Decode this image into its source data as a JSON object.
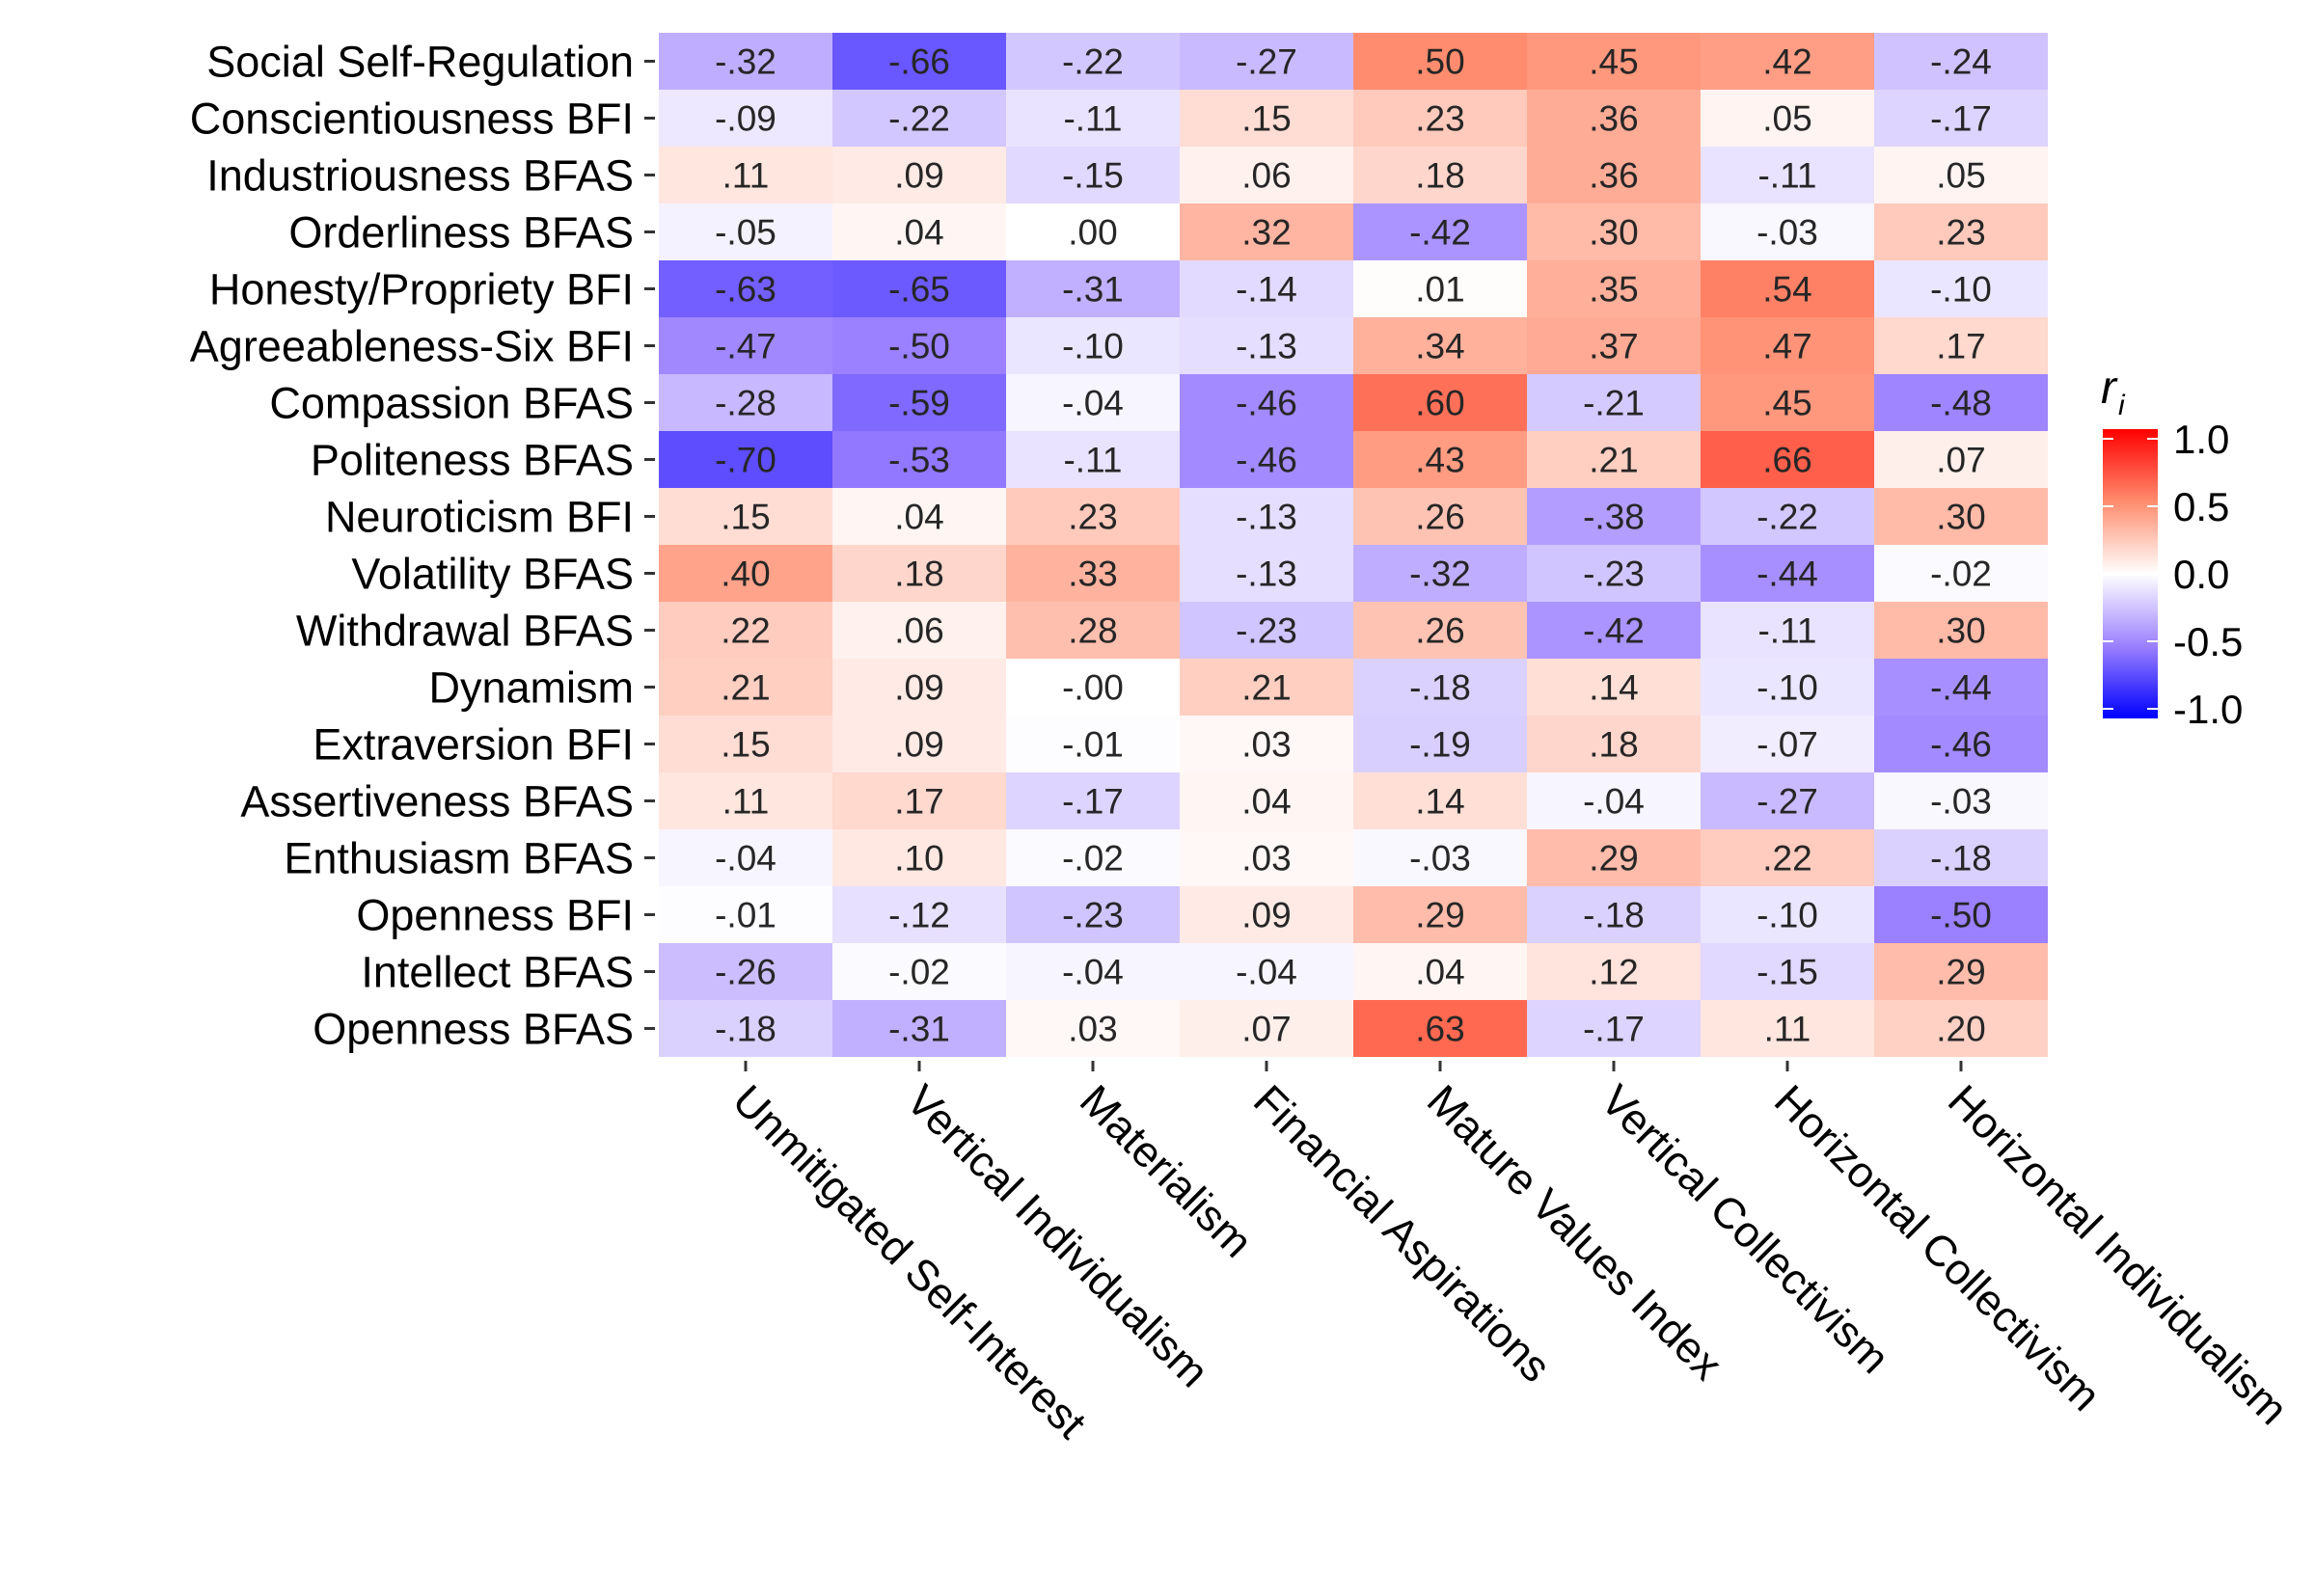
{
  "chart_data": {
    "type": "heatmap",
    "rows": [
      "Social Self-Regulation",
      "Conscientiousness BFI",
      "Industriousness BFAS",
      "Orderliness BFAS",
      "Honesty/Propriety BFI",
      "Agreeableness-Six BFI",
      "Compassion BFAS",
      "Politeness BFAS",
      "Neuroticism BFI",
      "Volatility BFAS",
      "Withdrawal BFAS",
      "Dynamism",
      "Extraversion BFI",
      "Assertiveness BFAS",
      "Enthusiasm BFAS",
      "Openness BFI",
      "Intellect BFAS",
      "Openness BFAS"
    ],
    "columns": [
      "Unmitigated Self-Interest",
      "Vertical Individualism",
      "Materialism",
      "Financial Aspirations",
      "Mature Values Index",
      "Vertical Collectivism",
      "Horizontal Collectivism",
      "Horizontal Individualism"
    ],
    "labels": [
      [
        "-.32",
        "-.66",
        "-.22",
        "-.27",
        ".50",
        ".45",
        ".42",
        "-.24"
      ],
      [
        "-.09",
        "-.22",
        "-.11",
        ".15",
        ".23",
        ".36",
        ".05",
        "-.17"
      ],
      [
        ".11",
        ".09",
        "-.15",
        ".06",
        ".18",
        ".36",
        "-.11",
        ".05"
      ],
      [
        "-.05",
        ".04",
        ".00",
        ".32",
        "-.42",
        ".30",
        "-.03",
        ".23"
      ],
      [
        "-.63",
        "-.65",
        "-.31",
        "-.14",
        ".01",
        ".35",
        ".54",
        "-.10"
      ],
      [
        "-.47",
        "-.50",
        "-.10",
        "-.13",
        ".34",
        ".37",
        ".47",
        ".17"
      ],
      [
        "-.28",
        "-.59",
        "-.04",
        "-.46",
        ".60",
        "-.21",
        ".45",
        "-.48"
      ],
      [
        "-.70",
        "-.53",
        "-.11",
        "-.46",
        ".43",
        ".21",
        ".66",
        ".07"
      ],
      [
        ".15",
        ".04",
        ".23",
        "-.13",
        ".26",
        "-.38",
        "-.22",
        ".30"
      ],
      [
        ".40",
        ".18",
        ".33",
        "-.13",
        "-.32",
        "-.23",
        "-.44",
        "-.02"
      ],
      [
        ".22",
        ".06",
        ".28",
        "-.23",
        ".26",
        "-.42",
        "-.11",
        ".30"
      ],
      [
        ".21",
        ".09",
        "-.00",
        ".21",
        "-.18",
        ".14",
        "-.10",
        "-.44"
      ],
      [
        ".15",
        ".09",
        "-.01",
        ".03",
        "-.19",
        ".18",
        "-.07",
        "-.46"
      ],
      [
        ".11",
        ".17",
        "-.17",
        ".04",
        ".14",
        "-.04",
        "-.27",
        "-.03"
      ],
      [
        "-.04",
        ".10",
        "-.02",
        ".03",
        "-.03",
        ".29",
        ".22",
        "-.18"
      ],
      [
        "-.01",
        "-.12",
        "-.23",
        ".09",
        ".29",
        "-.18",
        "-.10",
        "-.50"
      ],
      [
        "-.26",
        "-.02",
        "-.04",
        "-.04",
        ".04",
        ".12",
        "-.15",
        ".29"
      ],
      [
        "-.18",
        "-.31",
        ".03",
        ".07",
        ".63",
        "-.17",
        ".11",
        ".20"
      ]
    ],
    "legend": {
      "title": "r",
      "subscript": "i",
      "ticks": [
        "1.0",
        "0.5",
        "0.0",
        "-0.5",
        "-1.0"
      ],
      "tick_values": [
        1.0,
        0.5,
        0.0,
        -0.5,
        -1.0
      ],
      "range": [
        -1,
        1
      ],
      "low_color": "#0000ff",
      "mid_color": "#ffffff",
      "high_color": "#ff0000"
    },
    "grid": false,
    "legend_placement": "right"
  }
}
